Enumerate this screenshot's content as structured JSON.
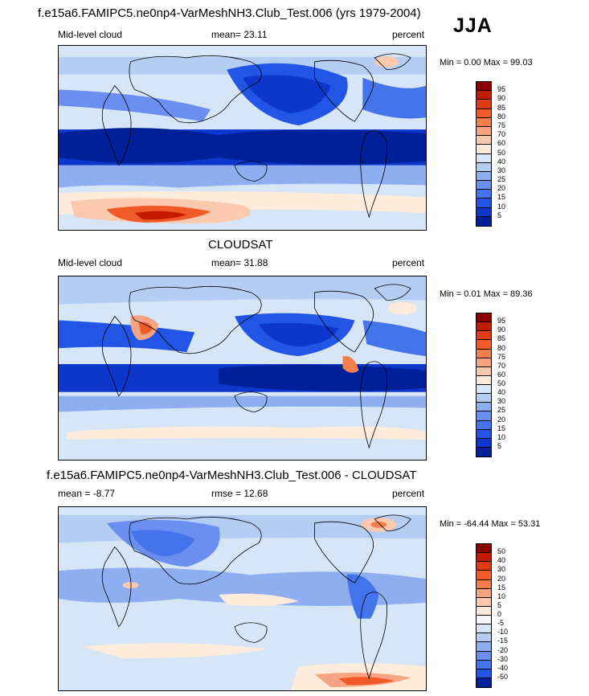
{
  "top": {
    "title": "f.e15a6.FAMIPC5.ne0np4-VarMeshNH3.Club_Test.006 (yrs 1979-2004)",
    "season": "JJA",
    "left_label": "Mid-level cloud",
    "mean_text": "mean=  23.11",
    "units": "percent",
    "minmax": "Min =   0.00  Max =  99.03"
  },
  "middle": {
    "title": "CLOUDSAT",
    "left_label": "Mid-level cloud",
    "mean_text": "mean=  31.88",
    "units": "percent",
    "minmax": "Min =   0.01  Max =  89.36"
  },
  "bottom": {
    "title": "f.e15a6.FAMIPC5.ne0np4-VarMeshNH3.Club_Test.006 - CLOUDSAT",
    "mean_text": "mean =  -8.77",
    "rmse_text": "rmse =  12.68",
    "units": "percent",
    "minmax": "Min = -64.44  Max =  53.31"
  },
  "colorbar_abs": {
    "labels": [
      "95",
      "90",
      "85",
      "80",
      "75",
      "70",
      "60",
      "50",
      "40",
      "30",
      "25",
      "20",
      "15",
      "10",
      "5"
    ],
    "colors": [
      "#8b0000",
      "#c41a00",
      "#e33b11",
      "#f05a28",
      "#f47f4d",
      "#f7a483",
      "#fbc9ad",
      "#fdebdc",
      "#d6e6f7",
      "#b4cdf3",
      "#8eaef0",
      "#6a8ff0",
      "#4474ec",
      "#2255e6",
      "#0c36cc",
      "#001f99"
    ]
  },
  "colorbar_diff": {
    "labels": [
      "50",
      "40",
      "30",
      "20",
      "15",
      "10",
      "5",
      "0",
      "-5",
      "-10",
      "-15",
      "-20",
      "-30",
      "-40",
      "-50"
    ],
    "colors": [
      "#8b0000",
      "#c41a00",
      "#e33b11",
      "#f05a28",
      "#f47f4d",
      "#f7a483",
      "#fbc9ad",
      "#fdebdc",
      "#f4f6fb",
      "#d6e6f7",
      "#b4cdf3",
      "#8eaef0",
      "#6a8ff0",
      "#4474ec",
      "#2255e6",
      "#001f99"
    ]
  }
}
